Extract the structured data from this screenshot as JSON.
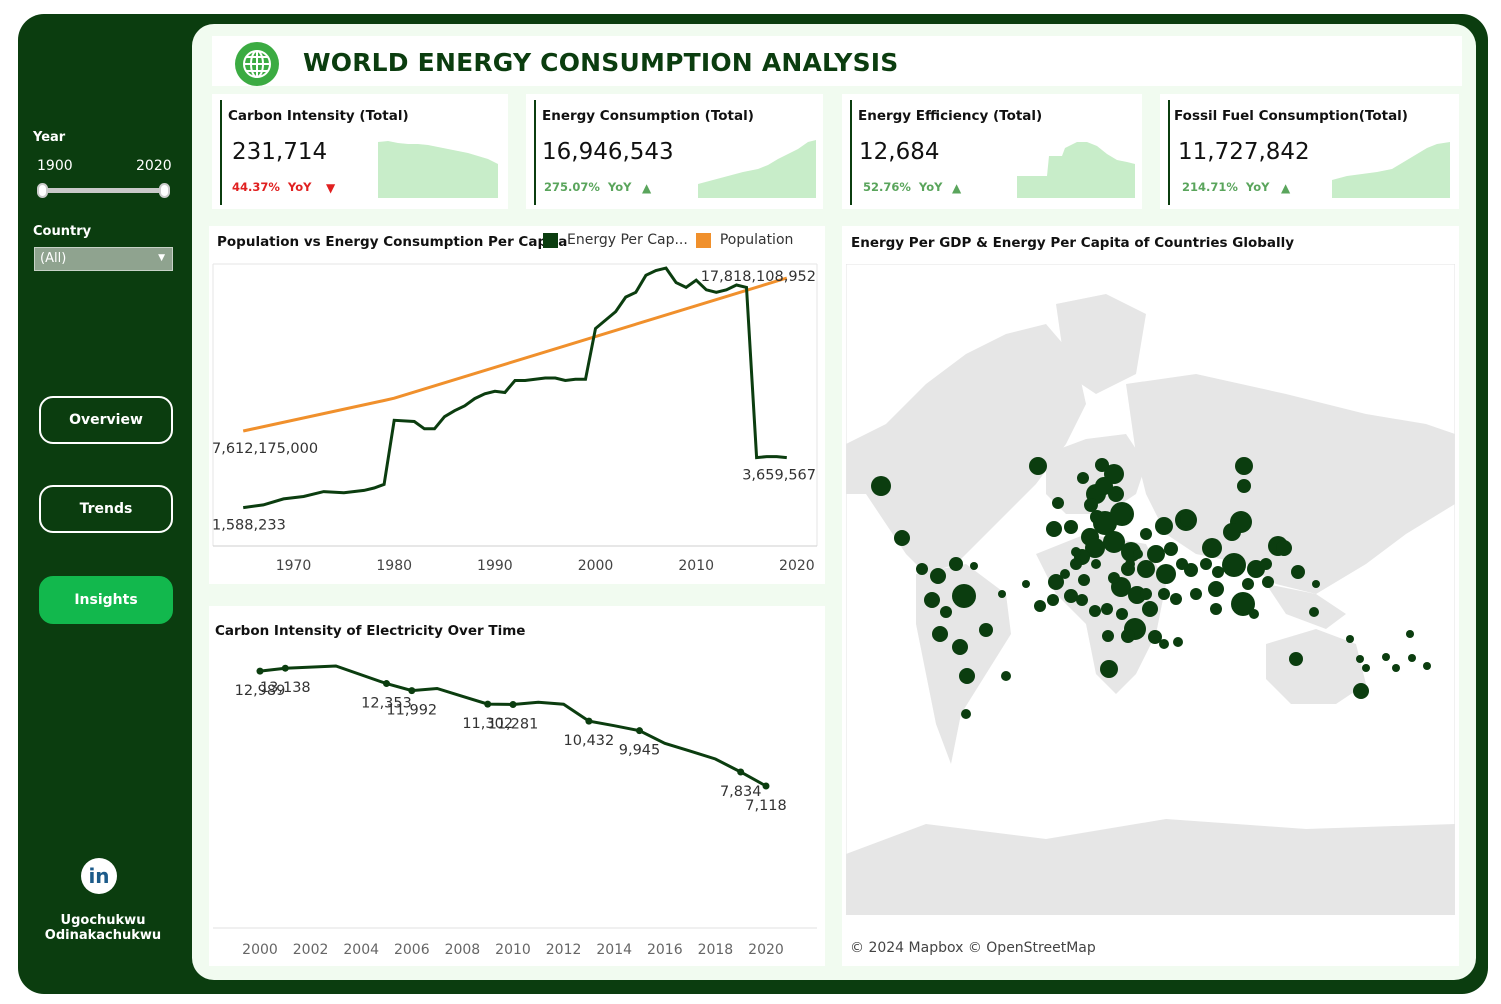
{
  "sidebar": {
    "year_label": "Year",
    "year_min": "1900",
    "year_max": "2020",
    "country_label": "Country",
    "country_value": "(All)",
    "nav": [
      {
        "label": "Overview"
      },
      {
        "label": "Trends"
      },
      {
        "label": "Insights"
      }
    ],
    "linkedin_icon_text": "in",
    "author_line1": "Ugochukwu",
    "author_line2": "Odinakachukwu"
  },
  "header": {
    "title": "WORLD ENERGY CONSUMPTION ANALYSIS",
    "icon": "globe-icon"
  },
  "kpis": [
    {
      "title": "Carbon Intensity (Total)",
      "value": "231,714",
      "change": "44.37%",
      "yoy": "YoY",
      "direction": "down",
      "color": "#e02020"
    },
    {
      "title": "Energy Consumption (Total)",
      "value": "16,946,543",
      "change": "275.07%",
      "yoy": "YoY",
      "direction": "up",
      "color": "#5aa55c"
    },
    {
      "title": "Energy Efficiency (Total)",
      "value": "12,684",
      "change": "52.76%",
      "yoy": "YoY",
      "direction": "up",
      "color": "#5aa55c"
    },
    {
      "title": "Fossil Fuel Consumption(Total)",
      "value": "11,727,842",
      "change": "214.71%",
      "yoy": "YoY",
      "direction": "up",
      "color": "#5aa55c"
    }
  ],
  "pop_chart": {
    "title": "Population vs Energy Consumption Per Capita",
    "legend": [
      {
        "name": "Energy Per Cap...",
        "color": "#0b3d0f"
      },
      {
        "name": "Population",
        "color": "#f0902c"
      }
    ]
  },
  "carbon_chart": {
    "title": "Carbon Intensity of Electricity Over Time"
  },
  "map": {
    "title": "Energy Per GDP & Energy Per Capita of Countries Globally",
    "attribution": "© 2024 Mapbox  © OpenStreetMap"
  },
  "colors": {
    "dark_green": "#0b3d0f",
    "accent_green": "#12b84d",
    "orange": "#f0902c",
    "spark_fill": "#c8edc9"
  },
  "chart_data": [
    {
      "type": "line",
      "title": "Population vs Energy Consumption Per Capita",
      "x_ticks": [
        1970,
        1980,
        1990,
        2000,
        2010,
        2020
      ],
      "series": [
        {
          "name": "Energy Per Cap...",
          "x": [
            1965,
            1967,
            1969,
            1971,
            1973,
            1975,
            1977,
            1978,
            1979,
            1980,
            1982,
            1983,
            1984,
            1985,
            1986,
            1987,
            1988,
            1989,
            1990,
            1991,
            1992,
            1993,
            1995,
            1996,
            1997,
            1998,
            1999,
            2000,
            2002,
            2003,
            2004,
            2005,
            2006,
            2007,
            2008,
            2009,
            2010,
            2011,
            2012,
            2013,
            2014,
            2015,
            2016,
            2017,
            2018,
            2019
          ],
          "values": [
            1588233,
            1700000,
            1950000,
            2050000,
            2250000,
            2200000,
            2300000,
            2400000,
            2550000,
            5200000,
            5150000,
            4850000,
            4850000,
            5350000,
            5600000,
            5800000,
            6100000,
            6300000,
            6400000,
            6350000,
            6850000,
            6850000,
            6950000,
            6950000,
            6850000,
            6900000,
            6900000,
            9000000,
            9700000,
            10300000,
            10500000,
            11200000,
            11400000,
            11500000,
            10900000,
            10700000,
            11000000,
            10600000,
            10500000,
            10600000,
            10800000,
            10700000,
            3659567,
            3700000,
            3700000,
            3659567
          ],
          "start_label": "1,588,233",
          "end_label": "3,659,567"
        },
        {
          "name": "Population",
          "x": [
            1965,
            1979,
            1980,
            2019
          ],
          "values": [
            7612175000,
            9650000000,
            9800000000,
            17818108952
          ],
          "start_label": "7,612,175,000",
          "end_label": "17,818,108,952"
        }
      ]
    },
    {
      "type": "line",
      "title": "Carbon Intensity of Electricity Over Time",
      "x_ticks": [
        2000,
        2002,
        2004,
        2006,
        2008,
        2010,
        2012,
        2014,
        2016,
        2018,
        2020
      ],
      "series": [
        {
          "name": "Carbon Intensity",
          "x": [
            2000,
            2001,
            2003,
            2005,
            2006,
            2007,
            2008,
            2009,
            2010,
            2011,
            2012,
            2013,
            2014,
            2015,
            2016,
            2017,
            2018,
            2019,
            2020
          ],
          "values": [
            12989,
            13138,
            13250,
            12353,
            11992,
            12100,
            11700,
            11302,
            11281,
            11400,
            11300,
            10432,
            10200,
            9945,
            9300,
            8900,
            8500,
            7834,
            7118
          ],
          "labels": [
            {
              "x": 2000,
              "text": "12,989"
            },
            {
              "x": 2001,
              "text": "13,138"
            },
            {
              "x": 2005,
              "text": "12,353"
            },
            {
              "x": 2006,
              "text": "11,992"
            },
            {
              "x": 2009,
              "text": "11,302"
            },
            {
              "x": 2010,
              "text": "11,281"
            },
            {
              "x": 2013,
              "text": "10,432"
            },
            {
              "x": 2015,
              "text": "9,945"
            },
            {
              "x": 2019,
              "text": "7,834"
            },
            {
              "x": 2020,
              "text": "7,118"
            }
          ]
        }
      ]
    }
  ]
}
